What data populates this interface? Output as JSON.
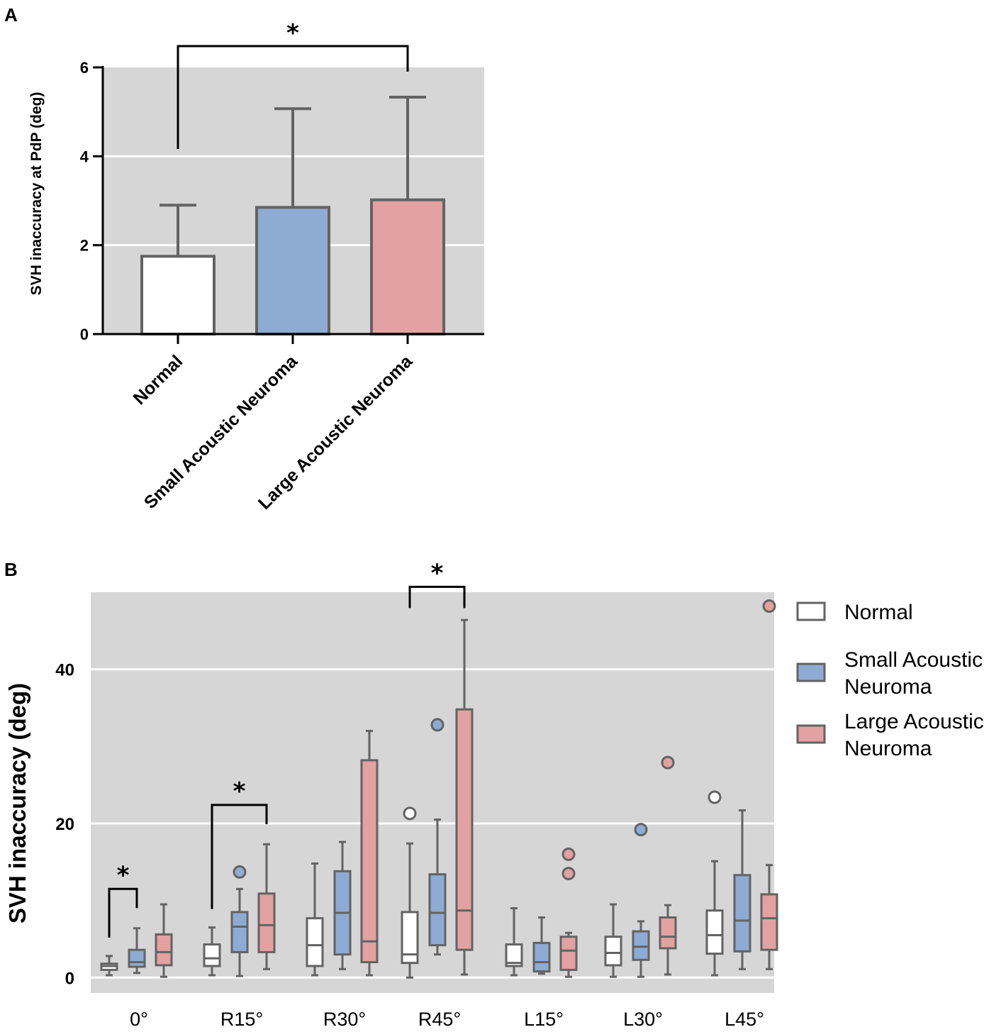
{
  "chart_data": [
    {
      "panel": "A",
      "type": "bar",
      "ylabel": "SVH inaccuracy at PdP (deg)",
      "ylim": [
        0,
        6
      ],
      "yticks": [
        "0",
        "2",
        "4",
        "6"
      ],
      "categories": [
        "Normal",
        "Small Acoustic Neuroma",
        "Large Acoustic Neuroma"
      ],
      "values": [
        1.75,
        2.85,
        3.02
      ],
      "error_upper": [
        2.9,
        5.07,
        5.33
      ],
      "colors": [
        "#ffffff",
        "#8eabd3",
        "#e3a1a1"
      ],
      "grid": true,
      "significance": [
        {
          "from": 0,
          "to": 2,
          "label": "*"
        }
      ]
    },
    {
      "panel": "B",
      "type": "box",
      "ylabel": "SVH inaccuracy (deg)",
      "ylim": [
        -2,
        50
      ],
      "yticks": [
        "0",
        "20",
        "40"
      ],
      "categories": [
        "0°",
        "R15°",
        "R30°",
        "R45°",
        "L15°",
        "L30°",
        "L45°"
      ],
      "legend": {
        "placement": "right",
        "entries": [
          {
            "line1": "Normal",
            "line2": ""
          },
          {
            "line1": "Small Acoustic",
            "line2": "Neuroma"
          },
          {
            "line1": "Large Acoustic",
            "line2": "Neuroma"
          }
        ]
      },
      "series_colors": [
        "#ffffff",
        "#8eabd3",
        "#e3a1a1"
      ],
      "series": [
        {
          "name": "Normal",
          "boxes": [
            {
              "min": 0.3,
              "q1": 1.0,
              "median": 1.5,
              "q3": 1.8,
              "max": 2.8,
              "outliers": []
            },
            {
              "min": 0.3,
              "q1": 1.5,
              "median": 2.5,
              "q3": 4.3,
              "max": 6.5,
              "outliers": []
            },
            {
              "min": 0.3,
              "q1": 1.5,
              "median": 4.2,
              "q3": 7.7,
              "max": 14.8,
              "outliers": []
            },
            {
              "min": 0.0,
              "q1": 1.9,
              "median": 3.0,
              "q3": 8.5,
              "max": 17.4,
              "outliers": [
                21.3
              ]
            },
            {
              "min": 0.3,
              "q1": 1.5,
              "median": 1.9,
              "q3": 4.3,
              "max": 9.0,
              "outliers": []
            },
            {
              "min": 0.1,
              "q1": 1.6,
              "median": 3.2,
              "q3": 5.3,
              "max": 9.5,
              "outliers": []
            },
            {
              "min": 0.3,
              "q1": 3.1,
              "median": 5.5,
              "q3": 8.7,
              "max": 15.1,
              "outliers": [
                23.4
              ]
            }
          ]
        },
        {
          "name": "Small Acoustic Neuroma",
          "boxes": [
            {
              "min": 0.6,
              "q1": 1.4,
              "median": 2.0,
              "q3": 3.6,
              "max": 6.4,
              "outliers": []
            },
            {
              "min": 0.2,
              "q1": 3.3,
              "median": 6.6,
              "q3": 8.5,
              "max": 11.5,
              "outliers": [
                13.7
              ]
            },
            {
              "min": 1.1,
              "q1": 3.0,
              "median": 8.4,
              "q3": 13.8,
              "max": 17.6,
              "outliers": []
            },
            {
              "min": 3.0,
              "q1": 4.2,
              "median": 8.4,
              "q3": 13.4,
              "max": 20.5,
              "outliers": [
                32.8
              ]
            },
            {
              "min": 0.5,
              "q1": 0.8,
              "median": 2.0,
              "q3": 4.5,
              "max": 7.8,
              "outliers": []
            },
            {
              "min": 0.1,
              "q1": 2.3,
              "median": 4.0,
              "q3": 6.0,
              "max": 7.3,
              "outliers": [
                19.2
              ]
            },
            {
              "min": 1.1,
              "q1": 3.4,
              "median": 7.4,
              "q3": 13.3,
              "max": 21.7,
              "outliers": []
            }
          ]
        },
        {
          "name": "Large Acoustic Neuroma",
          "boxes": [
            {
              "min": 0.1,
              "q1": 1.6,
              "median": 3.3,
              "q3": 5.6,
              "max": 9.5,
              "outliers": []
            },
            {
              "min": 1.1,
              "q1": 3.3,
              "median": 6.8,
              "q3": 10.9,
              "max": 17.3,
              "outliers": []
            },
            {
              "min": 0.3,
              "q1": 2.0,
              "median": 4.7,
              "q3": 28.2,
              "max": 32.0,
              "outliers": []
            },
            {
              "min": 0.4,
              "q1": 3.6,
              "median": 8.7,
              "q3": 34.8,
              "max": 46.4,
              "outliers": []
            },
            {
              "min": 0.1,
              "q1": 1.0,
              "median": 3.5,
              "q3": 5.3,
              "max": 5.8,
              "outliers": [
                16.0,
                13.5
              ]
            },
            {
              "min": 0.4,
              "q1": 3.8,
              "median": 5.3,
              "q3": 7.8,
              "max": 9.4,
              "outliers": [
                27.9
              ]
            },
            {
              "min": 1.1,
              "q1": 3.6,
              "median": 7.7,
              "q3": 10.8,
              "max": 14.6,
              "outliers": [
                48.2
              ]
            }
          ]
        }
      ],
      "significance": [
        {
          "group": 0,
          "from": 0,
          "to": 1,
          "label": "*"
        },
        {
          "group": 1,
          "from": 0,
          "to": 2,
          "label": "*"
        },
        {
          "group": 3,
          "from": 0,
          "to": 2,
          "label": "*"
        }
      ]
    }
  ],
  "panel_labels": {
    "a": "A",
    "b": "B"
  }
}
